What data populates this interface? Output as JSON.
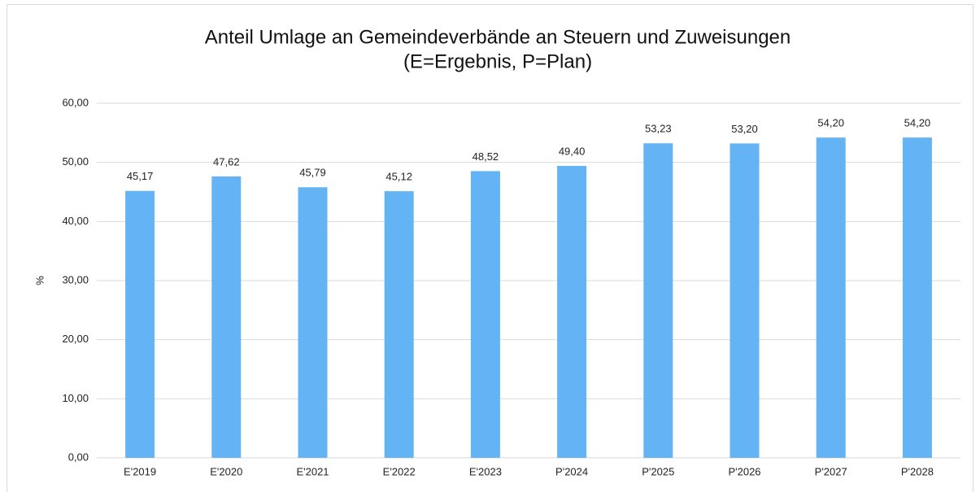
{
  "chart_data": {
    "type": "bar",
    "title": "Anteil Umlage an Gemeindeverbände an Steuern und Zuweisungen",
    "subtitle": "(E=Ergebnis, P=Plan)",
    "y_label": "%",
    "categories": [
      "E'2019",
      "E'2020",
      "E'2021",
      "E'2022",
      "E'2023",
      "P'2024",
      "P'2025",
      "P'2026",
      "P'2027",
      "P'2028"
    ],
    "values": [
      45.17,
      47.62,
      45.79,
      45.12,
      48.52,
      49.4,
      53.23,
      53.2,
      54.2,
      54.2
    ],
    "value_labels": [
      "45,17",
      "47,62",
      "45,79",
      "45,12",
      "48,52",
      "49,40",
      "53,23",
      "53,20",
      "54,20",
      "54,20"
    ],
    "color": "#63b3f5",
    "ylim": [
      0,
      60
    ],
    "yticks": [
      {
        "value": 0,
        "label": "0,00"
      },
      {
        "value": 10,
        "label": "10,00"
      },
      {
        "value": 20,
        "label": "20,00"
      },
      {
        "value": 30,
        "label": "30,00"
      },
      {
        "value": 40,
        "label": "40,00"
      },
      {
        "value": 50,
        "label": "50,00"
      },
      {
        "value": 60,
        "label": "60,00"
      }
    ],
    "grid": true
  }
}
